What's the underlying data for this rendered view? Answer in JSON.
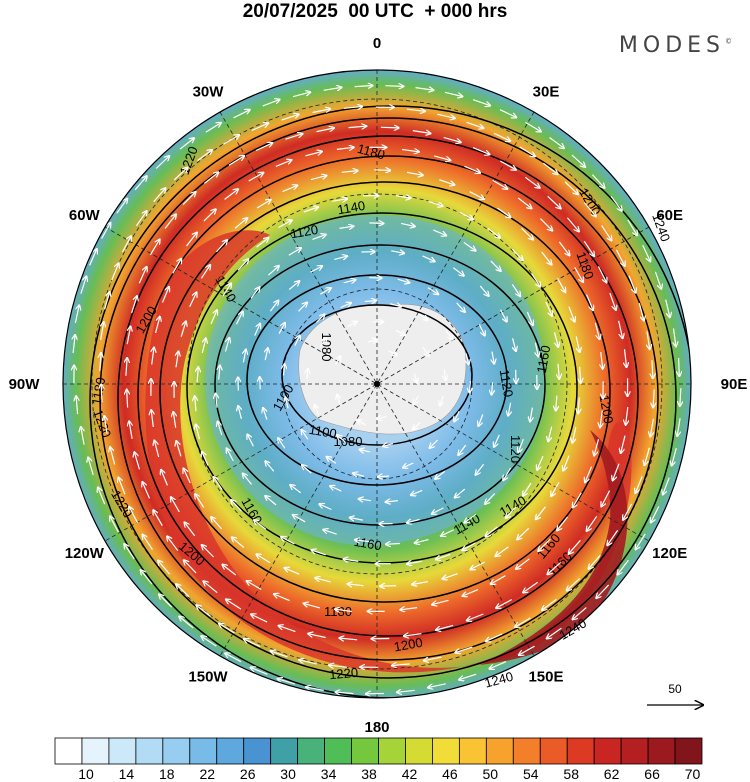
{
  "title": "20/07/2025  00 UTC  + 000 hrs",
  "brand": "MODES",
  "brand_mark": "©",
  "map": {
    "projection": "south-polar-stereographic",
    "longitude_labels": [
      {
        "text": "0",
        "lon": 0
      },
      {
        "text": "30E",
        "lon": 30
      },
      {
        "text": "60E",
        "lon": 60
      },
      {
        "text": "90E",
        "lon": 90
      },
      {
        "text": "120E",
        "lon": 120
      },
      {
        "text": "150E",
        "lon": 150
      },
      {
        "text": "180",
        "lon": 180
      },
      {
        "text": "150W",
        "lon": -150
      },
      {
        "text": "120W",
        "lon": -120
      },
      {
        "text": "90W",
        "lon": -90
      },
      {
        "text": "60W",
        "lon": -60
      },
      {
        "text": "30W",
        "lon": -30
      }
    ],
    "contour_labels": [
      "1220",
      "1180",
      "1140",
      "1240",
      "1200",
      "1180",
      "1120",
      "1140",
      "1200",
      "1080",
      "1100",
      "1160",
      "1120",
      "1180",
      "1220",
      "1160",
      "1100",
      "1080",
      "1120",
      "1200",
      "1140",
      "1160",
      "1160",
      "1140",
      "1220",
      "1200",
      "1180",
      "1200",
      "1220",
      "1240",
      "1240",
      "1160"
    ],
    "shading_variable": "wind speed",
    "contour_variable": "geopotential height"
  },
  "wind_reference": {
    "value": "50",
    "arrow": "right-arrow"
  },
  "colorbar": {
    "tick_labels": [
      "10",
      "14",
      "18",
      "22",
      "26",
      "30",
      "34",
      "38",
      "42",
      "46",
      "50",
      "54",
      "58",
      "62",
      "66",
      "70"
    ],
    "colors": [
      "#ffffff",
      "#e4f3fc",
      "#cce9f9",
      "#b2dcf5",
      "#96cdf0",
      "#78bbe9",
      "#5ea7df",
      "#4a93d2",
      "#3fa0a8",
      "#48b27a",
      "#4fbe56",
      "#75c83e",
      "#a6d338",
      "#d4dc34",
      "#f2dc38",
      "#f9c334",
      "#f8a22e",
      "#f37f2a",
      "#ea5b27",
      "#dd3a24",
      "#c92623",
      "#b41f22",
      "#9c1a1f",
      "#82141b"
    ]
  }
}
